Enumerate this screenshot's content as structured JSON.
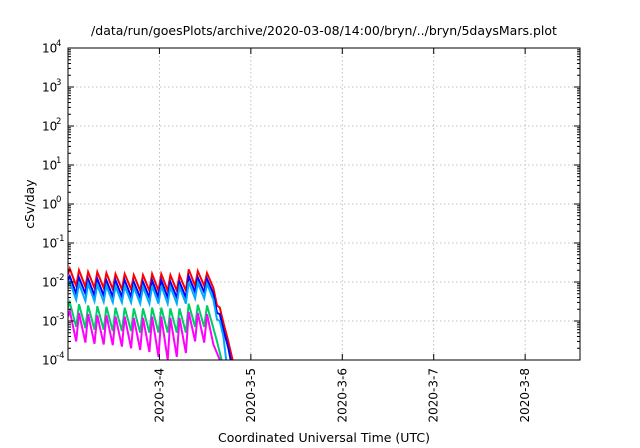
{
  "chart_data": {
    "type": "line",
    "title": "/data/run/goesPlots/archive/2020-03-08/14:00/bryn/../bryn/5daysMars.plot",
    "xlabel": "Coordinated Universal Time (UTC)",
    "ylabel": "cSv/day",
    "y_scale": "log",
    "ylim": [
      0.0001,
      10000
    ],
    "xlim_days": [
      3.0,
      8.6
    ],
    "x_ticks": [
      {
        "pos": 4,
        "label": "2020-3-4"
      },
      {
        "pos": 5,
        "label": "2020-3-5"
      },
      {
        "pos": 6,
        "label": "2020-3-6"
      },
      {
        "pos": 7,
        "label": "2020-3-7"
      },
      {
        "pos": 8,
        "label": "2020-3-8"
      }
    ],
    "y_ticks": [
      {
        "value": 0.0001,
        "base": "10",
        "exp": "-4"
      },
      {
        "value": 0.001,
        "base": "10",
        "exp": "-3"
      },
      {
        "value": 0.01,
        "base": "10",
        "exp": "-2"
      },
      {
        "value": 0.1,
        "base": "10",
        "exp": "-1"
      },
      {
        "value": 1,
        "base": "10",
        "exp": "0"
      },
      {
        "value": 10,
        "base": "10",
        "exp": "1"
      },
      {
        "value": 100,
        "base": "10",
        "exp": "2"
      },
      {
        "value": 1000,
        "base": "10",
        "exp": "3"
      },
      {
        "value": 10000,
        "base": "10",
        "exp": "4"
      }
    ],
    "grid": true,
    "series": [
      {
        "color": "#ff0000",
        "x": [
          3.0,
          3.02,
          3.09,
          3.12,
          3.19,
          3.22,
          3.29,
          3.32,
          3.39,
          3.42,
          3.49,
          3.52,
          3.59,
          3.62,
          3.69,
          3.72,
          3.79,
          3.82,
          3.89,
          3.92,
          3.99,
          4.02,
          4.09,
          4.12,
          4.19,
          4.22,
          4.29,
          4.32,
          4.39,
          4.42,
          4.49,
          4.52,
          4.59,
          4.63,
          4.66,
          4.7,
          4.75,
          4.8
        ],
        "y": [
          0.016,
          0.022,
          0.008,
          0.02,
          0.0075,
          0.018,
          0.007,
          0.018,
          0.007,
          0.017,
          0.0065,
          0.016,
          0.0065,
          0.016,
          0.0065,
          0.015,
          0.006,
          0.015,
          0.006,
          0.016,
          0.006,
          0.016,
          0.006,
          0.015,
          0.006,
          0.015,
          0.006,
          0.021,
          0.008,
          0.019,
          0.008,
          0.017,
          0.007,
          0.0025,
          0.0022,
          0.0009,
          0.00032,
          0.0001
        ]
      },
      {
        "color": "#0000ff",
        "x": [
          3.0,
          3.02,
          3.09,
          3.12,
          3.19,
          3.22,
          3.29,
          3.32,
          3.39,
          3.42,
          3.49,
          3.52,
          3.59,
          3.62,
          3.69,
          3.72,
          3.79,
          3.82,
          3.89,
          3.92,
          3.99,
          4.02,
          4.09,
          4.12,
          4.19,
          4.22,
          4.29,
          4.32,
          4.39,
          4.42,
          4.49,
          4.52,
          4.59,
          4.63,
          4.66,
          4.7,
          4.75,
          4.78
        ],
        "y": [
          0.011,
          0.014,
          0.005,
          0.013,
          0.005,
          0.012,
          0.0045,
          0.012,
          0.0045,
          0.011,
          0.0042,
          0.011,
          0.0042,
          0.011,
          0.0042,
          0.01,
          0.004,
          0.01,
          0.004,
          0.011,
          0.004,
          0.011,
          0.004,
          0.01,
          0.004,
          0.01,
          0.004,
          0.014,
          0.0055,
          0.013,
          0.0055,
          0.012,
          0.005,
          0.0016,
          0.0015,
          0.0006,
          0.00022,
          0.0001
        ]
      },
      {
        "color": "#00aaff",
        "x": [
          3.0,
          3.02,
          3.09,
          3.12,
          3.19,
          3.22,
          3.29,
          3.32,
          3.39,
          3.42,
          3.49,
          3.52,
          3.59,
          3.62,
          3.69,
          3.72,
          3.79,
          3.82,
          3.89,
          3.92,
          3.99,
          4.02,
          4.09,
          4.12,
          4.19,
          4.22,
          4.29,
          4.32,
          4.39,
          4.42,
          4.49,
          4.52,
          4.59,
          4.63,
          4.66,
          4.7,
          4.73
        ],
        "y": [
          0.008,
          0.01,
          0.0035,
          0.009,
          0.0033,
          0.009,
          0.0032,
          0.0085,
          0.0031,
          0.008,
          0.003,
          0.0078,
          0.003,
          0.0078,
          0.003,
          0.0075,
          0.0028,
          0.0075,
          0.0028,
          0.008,
          0.0028,
          0.008,
          0.0028,
          0.0075,
          0.0028,
          0.0075,
          0.0028,
          0.01,
          0.0038,
          0.0095,
          0.0038,
          0.009,
          0.0035,
          0.0011,
          0.001,
          0.0004,
          0.0001
        ]
      },
      {
        "color": "#00cc66",
        "x": [
          3.0,
          3.02,
          3.09,
          3.12,
          3.19,
          3.22,
          3.29,
          3.32,
          3.39,
          3.42,
          3.49,
          3.52,
          3.59,
          3.62,
          3.69,
          3.72,
          3.79,
          3.82,
          3.89,
          3.92,
          3.99,
          4.02,
          4.09,
          4.12,
          4.19,
          4.22,
          4.29,
          4.32,
          4.39,
          4.42,
          4.49,
          4.52,
          4.59,
          4.63,
          4.68
        ],
        "y": [
          0.0022,
          0.003,
          0.0007,
          0.0027,
          0.00065,
          0.0025,
          0.0006,
          0.0024,
          0.0006,
          0.0023,
          0.00055,
          0.0022,
          0.00055,
          0.0022,
          0.00055,
          0.0021,
          0.0005,
          0.0021,
          0.0005,
          0.0022,
          0.0005,
          0.0022,
          0.0005,
          0.0021,
          0.0005,
          0.0021,
          0.0005,
          0.0028,
          0.0007,
          0.0026,
          0.0007,
          0.0025,
          0.00065,
          0.0003,
          0.0001
        ]
      },
      {
        "color": "#ff00ff",
        "x": [
          3.0,
          3.02,
          3.09,
          3.12,
          3.19,
          3.22,
          3.29,
          3.32,
          3.39,
          3.42,
          3.49,
          3.52,
          3.59,
          3.62,
          3.69,
          3.72,
          3.79,
          3.82,
          3.89,
          3.92,
          3.99,
          4.02,
          4.09,
          4.12,
          4.19,
          4.22,
          4.29,
          4.32,
          4.39,
          4.42,
          4.49,
          4.52,
          4.59,
          4.63,
          4.66
        ],
        "y": [
          0.0013,
          0.0018,
          0.0003,
          0.0016,
          0.00028,
          0.0015,
          0.00026,
          0.0014,
          0.00025,
          0.0014,
          0.00024,
          0.0013,
          0.00022,
          0.0013,
          0.0002,
          0.0012,
          0.00018,
          0.0012,
          0.00016,
          0.0013,
          0.00012,
          0.0013,
          0.0001,
          0.0012,
          0.00012,
          0.0012,
          0.00015,
          0.0017,
          0.0003,
          0.0016,
          0.00028,
          0.0015,
          0.00025,
          0.00015,
          0.0001
        ]
      }
    ]
  }
}
